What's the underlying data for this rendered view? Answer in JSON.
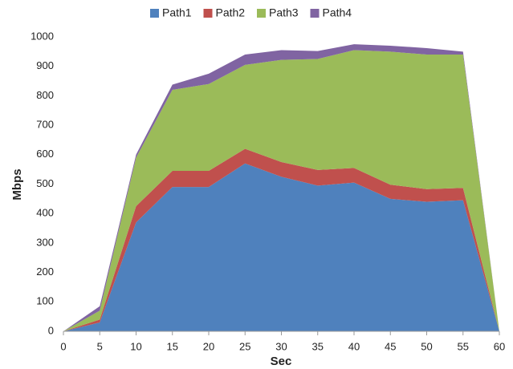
{
  "chart_data": {
    "type": "stacked_area",
    "x": [
      0,
      5,
      10,
      15,
      20,
      25,
      30,
      35,
      40,
      45,
      50,
      55,
      60
    ],
    "series": [
      {
        "name": "Path1",
        "color": "#4f81bd",
        "values": [
          0,
          30,
          370,
          490,
          490,
          570,
          525,
          495,
          505,
          450,
          440,
          445,
          0
        ]
      },
      {
        "name": "Path2",
        "color": "#c0504d",
        "values": [
          0,
          10,
          55,
          55,
          55,
          50,
          50,
          53,
          50,
          48,
          43,
          42,
          0
        ]
      },
      {
        "name": "Path3",
        "color": "#9bbb59",
        "values": [
          0,
          30,
          165,
          275,
          295,
          285,
          347,
          377,
          400,
          452,
          457,
          453,
          0
        ]
      },
      {
        "name": "Path4",
        "color": "#8064a2",
        "values": [
          0,
          15,
          10,
          18,
          35,
          35,
          33,
          27,
          20,
          20,
          22,
          10,
          0
        ]
      }
    ],
    "xlabel": "Sec",
    "ylabel": "Mbps",
    "xlim": [
      0,
      60
    ],
    "xticks": [
      0,
      5,
      10,
      15,
      20,
      25,
      30,
      35,
      40,
      45,
      50,
      55,
      60
    ],
    "ylim": [
      0,
      1000
    ],
    "yticks": [
      0,
      100,
      200,
      300,
      400,
      500,
      600,
      700,
      800,
      900,
      1000
    ],
    "grid": false,
    "legend": "top"
  }
}
